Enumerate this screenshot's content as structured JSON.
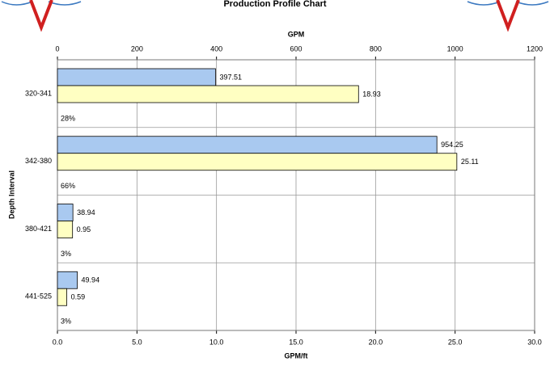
{
  "chart_data": {
    "type": "bar",
    "orientation": "horizontal",
    "title": "Production Profile Chart",
    "x2_label": "GPM",
    "x_label": "GPM/ft",
    "y_label": "Depth Interval",
    "categories": [
      "320-341",
      "342-380",
      "380-421",
      "441-525"
    ],
    "series": [
      {
        "color": "#a9c9f0",
        "axis": "x2",
        "values": [
          397.51,
          954.25,
          38.94,
          49.94
        ]
      },
      {
        "color": "#ffffc2",
        "axis": "x",
        "values": [
          18.93,
          25.11,
          0.95,
          0.59
        ]
      }
    ],
    "share_labels": [
      "28%",
      "66%",
      "3%",
      "3%"
    ],
    "x2lim": [
      0,
      1200
    ],
    "x2ticks": [
      0,
      200,
      400,
      600,
      800,
      1000,
      1200
    ],
    "xlim": [
      0,
      30
    ],
    "xticks": [
      {
        "value": 0,
        "label": "0.0"
      },
      {
        "value": 5,
        "label": "5.0"
      },
      {
        "value": 10,
        "label": "10.0"
      },
      {
        "value": 15,
        "label": "15.0"
      },
      {
        "value": 20,
        "label": "20.0"
      },
      {
        "value": 25,
        "label": "25.0"
      },
      {
        "value": 30,
        "label": "30.0"
      }
    ],
    "grid": true
  }
}
